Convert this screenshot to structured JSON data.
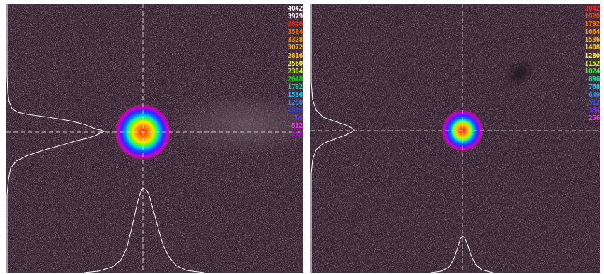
{
  "colors": {
    "background": "#3a2436",
    "profile_line": "#ffffff",
    "crosshair": "#d8d8d8",
    "outer_frame": "#ffffff"
  },
  "panels": [
    {
      "id": "left",
      "scale": {
        "labels": [
          "4042",
          "3979",
          "3840",
          "3584",
          "3328",
          "3072",
          "2816",
          "2560",
          "2304",
          "2048",
          "1792",
          "1536",
          "1280",
          "1024",
          "768",
          "512",
          "256"
        ],
        "colors": [
          "#ffffff",
          "#ffffff",
          "#ff2a00",
          "#ff6a00",
          "#ff9a00",
          "#ffb000",
          "#ffd200",
          "#ffff40",
          "#bfff00",
          "#00e800",
          "#00e0a0",
          "#00d0ff",
          "#3080ff",
          "#2040ff",
          "#6030ff",
          "#ff30ff",
          "#b000d0"
        ]
      }
    },
    {
      "id": "right",
      "scale": {
        "labels": [
          "2042",
          "1920",
          "1792",
          "1664",
          "1536",
          "1408",
          "1280",
          "1152",
          "1024",
          "896",
          "768",
          "640",
          "512",
          "384",
          "256"
        ],
        "colors": [
          "#ff2020",
          "#ff3a00",
          "#ff7000",
          "#ff9000",
          "#ffb000",
          "#ffd000",
          "#ffff40",
          "#bfff00",
          "#30ff30",
          "#00f0a0",
          "#00d8ff",
          "#3090ff",
          "#3050ff",
          "#7030ff",
          "#ff30ff"
        ]
      }
    }
  ]
}
